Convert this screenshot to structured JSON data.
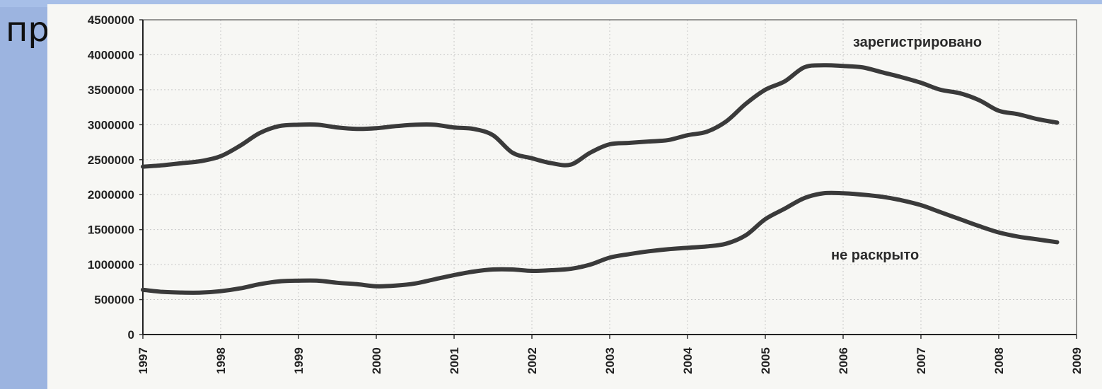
{
  "slide": {
    "title_fragment": "пр",
    "background": "#9cb4e0"
  },
  "chart_data": {
    "type": "line",
    "title": "",
    "xlabel": "",
    "ylabel": "",
    "xlim": [
      1997,
      2009
    ],
    "ylim": [
      0,
      4500000
    ],
    "x_ticks": [
      "1997",
      "1998",
      "1999",
      "2000",
      "2001",
      "2002",
      "2003",
      "2004",
      "2005",
      "2006",
      "2007",
      "2008",
      "2009"
    ],
    "y_ticks": [
      "0",
      "500000",
      "1000000",
      "1500000",
      "2000000",
      "2500000",
      "3000000",
      "3500000",
      "4000000",
      "4500000"
    ],
    "grid": true,
    "line_color": "#3a3a3a",
    "series": [
      {
        "name": "зарегистрировано",
        "x": [
          1997.0,
          1997.25,
          1997.5,
          1997.75,
          1998.0,
          1998.25,
          1998.5,
          1998.75,
          1999.0,
          1999.25,
          1999.5,
          1999.75,
          2000.0,
          2000.25,
          2000.5,
          2000.75,
          2001.0,
          2001.25,
          2001.5,
          2001.75,
          2002.0,
          2002.25,
          2002.5,
          2002.75,
          2003.0,
          2003.25,
          2003.5,
          2003.75,
          2004.0,
          2004.25,
          2004.5,
          2004.75,
          2005.0,
          2005.25,
          2005.5,
          2005.75,
          2006.0,
          2006.25,
          2006.5,
          2006.75,
          2007.0,
          2007.25,
          2007.5,
          2007.75,
          2008.0,
          2008.25,
          2008.5,
          2008.75
        ],
        "y": [
          2400000,
          2420000,
          2450000,
          2480000,
          2550000,
          2700000,
          2880000,
          2980000,
          3000000,
          3000000,
          2960000,
          2940000,
          2950000,
          2980000,
          3000000,
          3000000,
          2960000,
          2940000,
          2850000,
          2600000,
          2520000,
          2450000,
          2430000,
          2600000,
          2720000,
          2740000,
          2760000,
          2780000,
          2850000,
          2900000,
          3050000,
          3300000,
          3500000,
          3620000,
          3820000,
          3850000,
          3840000,
          3820000,
          3750000,
          3680000,
          3600000,
          3500000,
          3450000,
          3350000,
          3200000,
          3150000,
          3080000,
          3030000
        ]
      },
      {
        "name": "не раскрыто",
        "x": [
          1997.0,
          1997.25,
          1997.5,
          1997.75,
          1998.0,
          1998.25,
          1998.5,
          1998.75,
          1999.0,
          1999.25,
          1999.5,
          1999.75,
          2000.0,
          2000.25,
          2000.5,
          2000.75,
          2001.0,
          2001.25,
          2001.5,
          2001.75,
          2002.0,
          2002.25,
          2002.5,
          2002.75,
          2003.0,
          2003.25,
          2003.5,
          2003.75,
          2004.0,
          2004.25,
          2004.5,
          2004.75,
          2005.0,
          2005.25,
          2005.5,
          2005.75,
          2006.0,
          2006.25,
          2006.5,
          2006.75,
          2007.0,
          2007.25,
          2007.5,
          2007.75,
          2008.0,
          2008.25,
          2008.5,
          2008.75
        ],
        "y": [
          640000,
          610000,
          600000,
          600000,
          620000,
          660000,
          720000,
          760000,
          770000,
          770000,
          740000,
          720000,
          690000,
          700000,
          730000,
          790000,
          850000,
          900000,
          930000,
          930000,
          910000,
          920000,
          940000,
          1000000,
          1100000,
          1150000,
          1190000,
          1220000,
          1240000,
          1260000,
          1300000,
          1420000,
          1650000,
          1800000,
          1950000,
          2020000,
          2020000,
          2000000,
          1970000,
          1920000,
          1850000,
          1750000,
          1650000,
          1550000,
          1460000,
          1400000,
          1360000,
          1320000
        ]
      }
    ],
    "annotations": [
      "зарегистрировано",
      "не раскрыто"
    ]
  }
}
